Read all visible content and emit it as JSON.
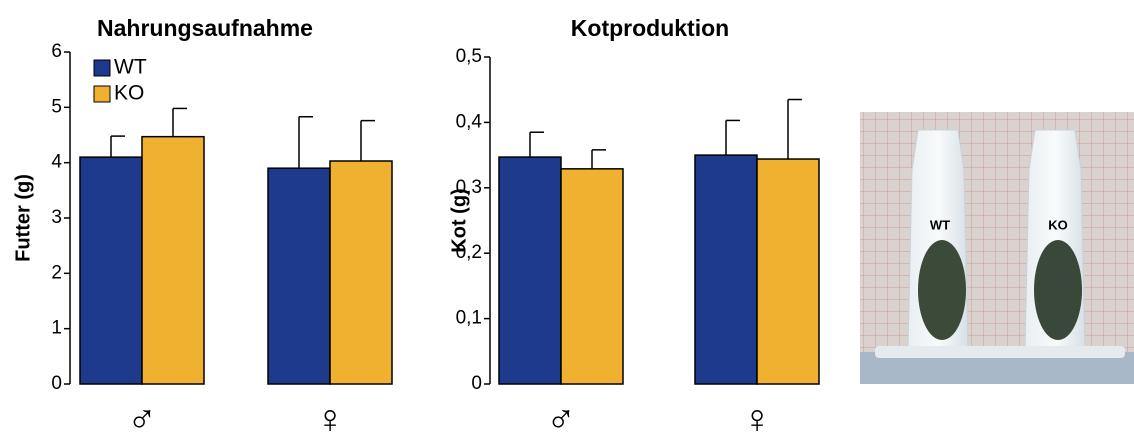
{
  "chart_data": [
    {
      "type": "bar",
      "title": "Nahrungsaufnahme",
      "y_label": "Futter (g)",
      "categories": [
        "♂",
        "♀"
      ],
      "series": [
        {
          "name": "WT",
          "color": "#1e3a8c",
          "values": [
            4.1,
            3.9
          ],
          "errors": [
            0.38,
            0.93
          ]
        },
        {
          "name": "KO",
          "color": "#f0b030",
          "values": [
            4.47,
            4.03
          ],
          "errors": [
            0.51,
            0.73
          ]
        }
      ],
      "ylim": [
        0,
        6
      ],
      "yticks": [
        0,
        1,
        2,
        3,
        4,
        5,
        6
      ],
      "legend": "upper left"
    },
    {
      "type": "bar",
      "title": "Kotproduktion",
      "y_label": "Kot (g)",
      "categories": [
        "♂",
        "♀"
      ],
      "series": [
        {
          "color": "#1e3a8c",
          "values": [
            0.347,
            0.35
          ],
          "errors": [
            0.038,
            0.053
          ]
        },
        {
          "color": "#f0b030",
          "values": [
            0.329,
            0.344
          ],
          "errors": [
            0.029,
            0.091
          ]
        }
      ],
      "ylim": [
        0,
        0.5
      ],
      "yticks": [
        {
          "value": 0,
          "label": "0"
        },
        {
          "value": 0.1,
          "label": "0,1"
        },
        {
          "value": 0.2,
          "label": "0,2"
        },
        {
          "value": 0.3,
          "label": "0,3"
        },
        {
          "value": 0.4,
          "label": "0,4"
        },
        {
          "value": 0.5,
          "label": "0,5"
        }
      ]
    }
  ],
  "photo": {
    "labels": [
      "WT",
      "KO"
    ]
  }
}
